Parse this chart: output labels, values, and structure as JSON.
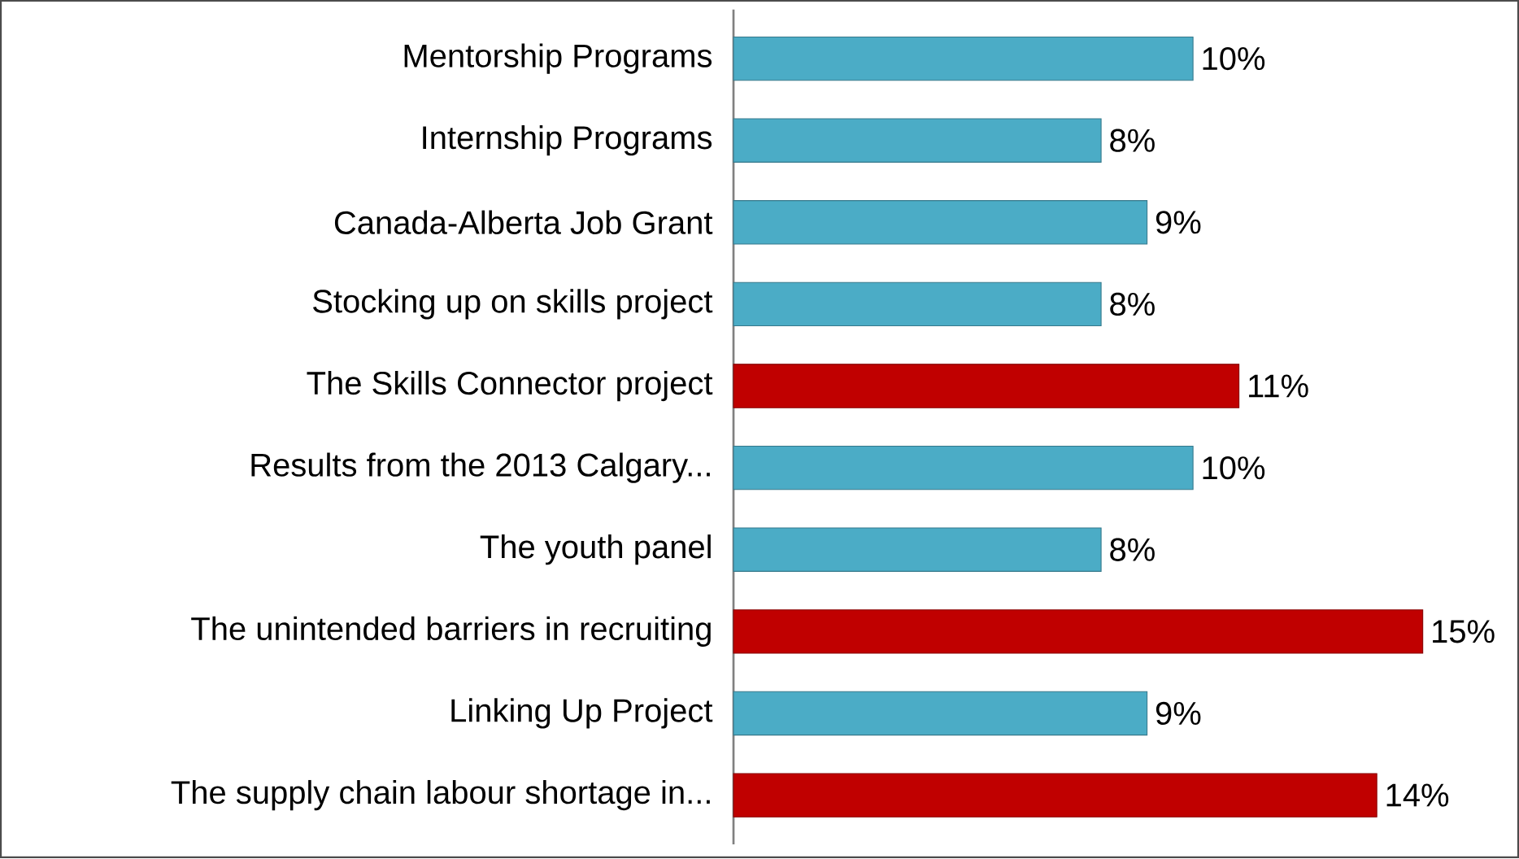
{
  "chart_data": {
    "type": "bar",
    "orientation": "horizontal",
    "tick_labels": "y",
    "categories": [
      "Mentorship Programs",
      "Internship Programs",
      "Canada-Alberta Job Grant",
      "Stocking up on skills project",
      "The Skills Connector project",
      "Results from the 2013 Calgary...",
      "The youth panel",
      "The unintended barriers in recruiting",
      "Linking Up Project",
      "The supply chain labour shortage in..."
    ],
    "values": [
      10,
      8,
      9,
      8,
      11,
      10,
      8,
      15,
      9,
      14
    ],
    "value_labels": [
      "10%",
      "8%",
      "9%",
      "8%",
      "11%",
      "10%",
      "8%",
      "15%",
      "9%",
      "14%"
    ],
    "colors": [
      "#4bacc6",
      "#4bacc6",
      "#4bacc6",
      "#4bacc6",
      "#c00000",
      "#4bacc6",
      "#4bacc6",
      "#c00000",
      "#4bacc6",
      "#c00000"
    ]
  }
}
